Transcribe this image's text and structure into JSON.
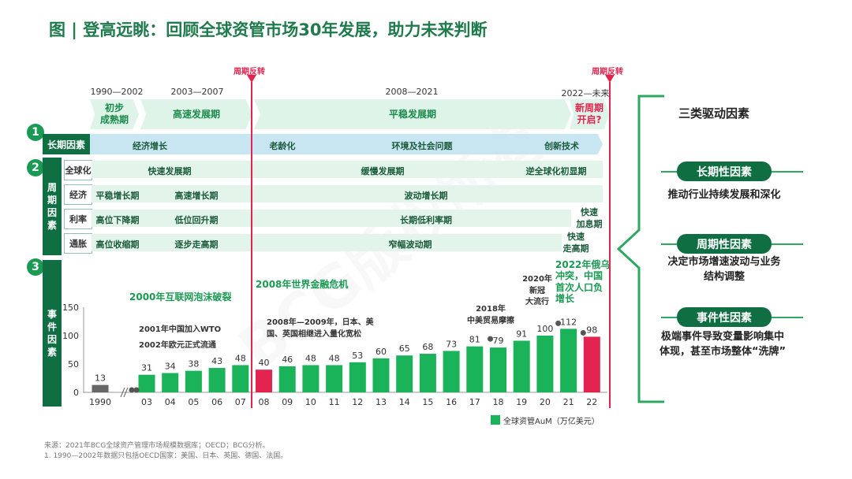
{
  "title": "图 | 登高远眺：回顾全球资管市场30年发展，助力未来判断",
  "watermark": "BCG版权所有",
  "eras": {
    "years": [
      "1990—2002",
      "2003—2007",
      "2008—2021",
      "2022—未来"
    ],
    "phases": [
      "初步\n成熟期",
      "高速发展期",
      "平稳发展期",
      "新周期\n开启?"
    ]
  },
  "turn_label": "周期反转",
  "section_numbers": [
    "1",
    "2",
    "3"
  ],
  "long_term": {
    "label": "长期因素",
    "items": [
      "经济增长",
      "老龄化",
      "环境及社会问题",
      "创新技术"
    ]
  },
  "cyclical": {
    "side_label": "周\n期\n因\n素",
    "rows": [
      {
        "label": "全球化",
        "segments": [
          "快速发展期",
          "缓慢发展期",
          "逆全球化初显期"
        ]
      },
      {
        "label": "经济",
        "segments": [
          "平稳增长期",
          "高速增长期",
          "波动增长期"
        ]
      },
      {
        "label": "利率",
        "segments": [
          "高位下降期",
          "低位回升期",
          "长期低利率期",
          "快速\n加息期"
        ]
      },
      {
        "label": "通胀",
        "segments": [
          "高位收缩期",
          "逐步走高期",
          "窄幅波动期",
          "快速\n走高期"
        ]
      }
    ]
  },
  "events": {
    "side_label": "事\n件\n因\n素",
    "items": [
      "2000年互联网泡沫破裂",
      "2001年中国加入WTO",
      "2002年欧元正式流通",
      "2008年世界金融危机",
      "2008年—2009年，日本、美\n国、英国相继进入量化宽松",
      "2018年\n中美贸易摩擦",
      "2020年\n新冠\n大流行",
      "2022年俄乌\n冲突，中国\n首次人口负\n增长"
    ]
  },
  "chart_data": {
    "type": "bar",
    "categories": [
      "1990",
      "03",
      "04",
      "05",
      "06",
      "07",
      "08",
      "09",
      "10",
      "11",
      "12",
      "13",
      "14",
      "15",
      "16",
      "17",
      "18",
      "19",
      "20",
      "21",
      "22"
    ],
    "values": [
      13,
      31,
      34,
      38,
      43,
      48,
      40,
      46,
      48,
      48,
      53,
      60,
      65,
      68,
      73,
      81,
      79,
      91,
      100,
      112,
      98
    ],
    "ylim": [
      0,
      150
    ],
    "yticks": [
      0,
      50,
      100,
      150
    ],
    "legend": "全球资管AuM（万亿美元）",
    "legend_placement": "bottom-right",
    "grid": false,
    "colors": {
      "normal": "#1ab35a",
      "gray": "#666666",
      "highlight": "#e2244f"
    }
  },
  "drivers": {
    "title": "三类驱动因素",
    "items": [
      {
        "name": "长期性因素",
        "desc": "推动行业持续发展和深化"
      },
      {
        "name": "周期性因素",
        "desc": "决定市场增速波动与业务\n结构调整"
      },
      {
        "name": "事件性因素",
        "desc": "极端事件导致变量影响集中\n体现，甚至市场整体“洗牌”"
      }
    ]
  },
  "footnotes": [
    "来源：2021年BCG全球资产管理市场规模数据库；OECD；BCG分析。",
    "1.   1990—2002年数据只包括OECD国家：美国、日本、英国、德国、法国。"
  ]
}
